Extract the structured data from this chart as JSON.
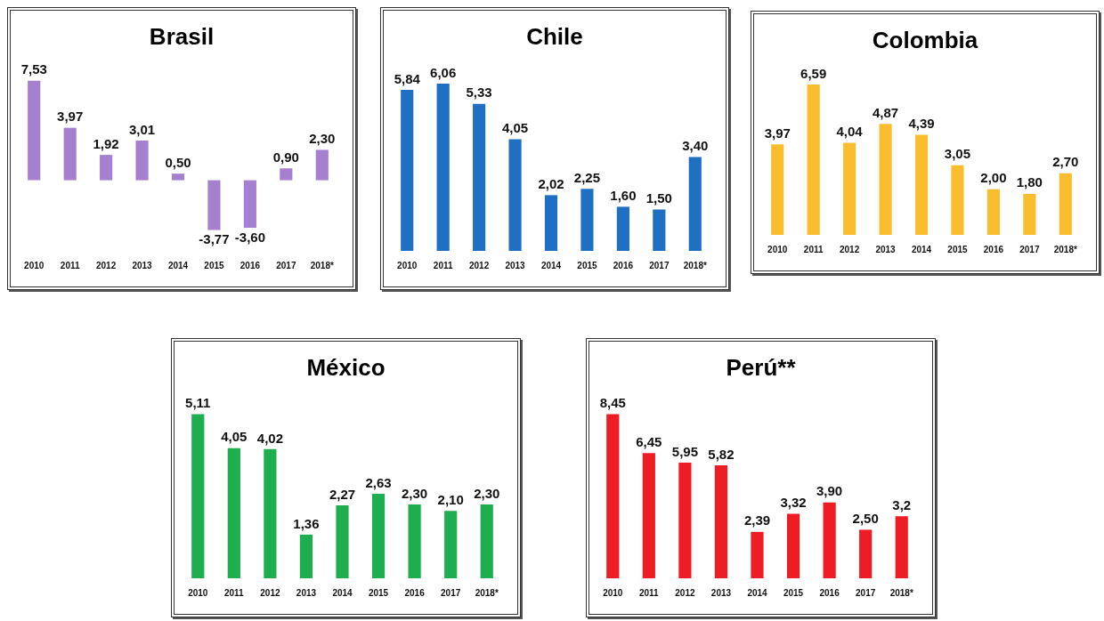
{
  "chart_data": [
    {
      "type": "bar",
      "title": "Brasil",
      "categories": [
        "2010",
        "2011",
        "2012",
        "2013",
        "2014",
        "2015",
        "2016",
        "2017",
        "2018*"
      ],
      "values": [
        7.53,
        3.97,
        1.92,
        3.01,
        0.5,
        -3.77,
        -3.6,
        0.9,
        2.3
      ],
      "value_labels": [
        "7,53",
        "3,97",
        "1,92",
        "3,01",
        "0,50",
        "-3,77",
        "-3,60",
        "0,90",
        "2,30"
      ],
      "color": "#a57fd0"
    },
    {
      "type": "bar",
      "title": "Chile",
      "categories": [
        "2010",
        "2011",
        "2012",
        "2013",
        "2014",
        "2015",
        "2016",
        "2017",
        "2018*"
      ],
      "values": [
        5.84,
        6.06,
        5.33,
        4.05,
        2.02,
        2.25,
        1.6,
        1.5,
        3.4
      ],
      "value_labels": [
        "5,84",
        "6,06",
        "5,33",
        "4,05",
        "2,02",
        "2,25",
        "1,60",
        "1,50",
        "3,40"
      ],
      "color": "#1f6fc2"
    },
    {
      "type": "bar",
      "title": "Colombia",
      "categories": [
        "2010",
        "2011",
        "2012",
        "2013",
        "2014",
        "2015",
        "2016",
        "2017",
        "2018*"
      ],
      "values": [
        3.97,
        6.59,
        4.04,
        4.87,
        4.39,
        3.05,
        2.0,
        1.8,
        2.7
      ],
      "value_labels": [
        "3,97",
        "6,59",
        "4,04",
        "4,87",
        "4,39",
        "3,05",
        "2,00",
        "1,80",
        "2,70"
      ],
      "color": "#f9bd2e"
    },
    {
      "type": "bar",
      "title": "México",
      "categories": [
        "2010",
        "2011",
        "2012",
        "2013",
        "2014",
        "2015",
        "2016",
        "2017",
        "2018*"
      ],
      "values": [
        5.11,
        4.05,
        4.02,
        1.36,
        2.27,
        2.63,
        2.3,
        2.1,
        2.3
      ],
      "value_labels": [
        "5,11",
        "4,05",
        "4,02",
        "1,36",
        "2,27",
        "2,63",
        "2,30",
        "2,10",
        "2,30"
      ],
      "color": "#1fae4f"
    },
    {
      "type": "bar",
      "title": "Perú**",
      "categories": [
        "2010",
        "2011",
        "2012",
        "2013",
        "2014",
        "2015",
        "2016",
        "2017",
        "2018*"
      ],
      "values": [
        8.45,
        6.45,
        5.95,
        5.82,
        2.39,
        3.32,
        3.9,
        2.5,
        3.2
      ],
      "value_labels": [
        "8,45",
        "6,45",
        "5,95",
        "5,82",
        "2,39",
        "3,32",
        "3,90",
        "2,50",
        "3,2"
      ],
      "color": "#ee1c25"
    }
  ]
}
